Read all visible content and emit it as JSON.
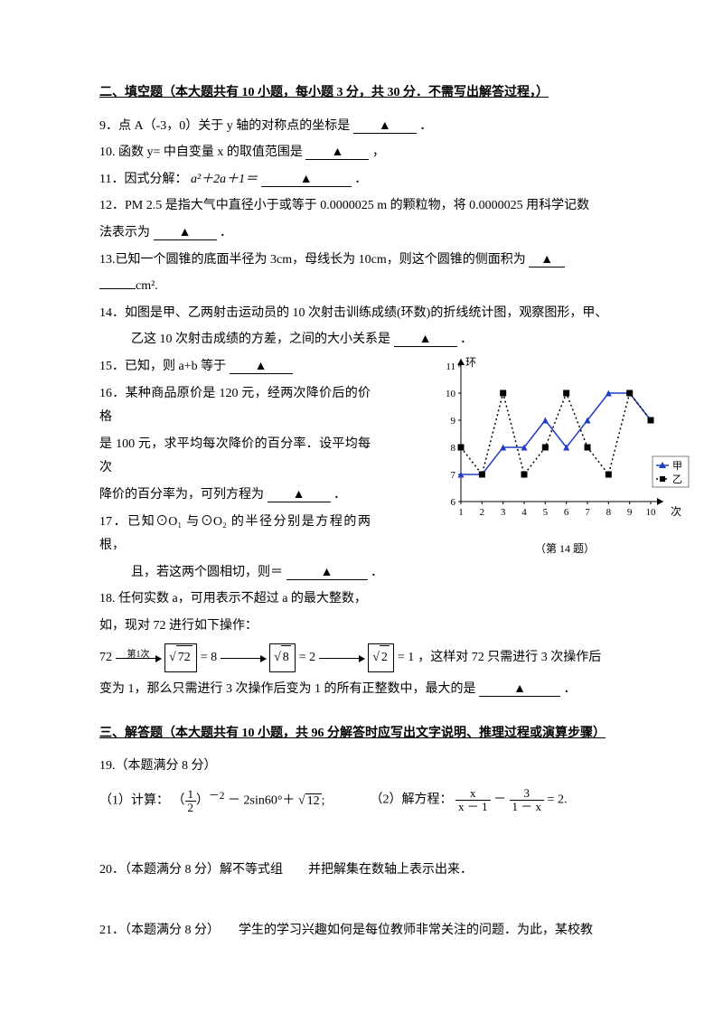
{
  "section2": {
    "heading": "二、填空题（本大题共有 10 小题，每小题 3 分，共 30 分．不需写出解答过程，）",
    "q9": "9．点 A（-3，0）关于 y 轴的对称点的坐标是",
    "q9end": "．",
    "q10": "10. 函数 y= 中自变量 x 的取值范围是",
    "q10end": "，",
    "q11a": "11．因式分解：",
    "q11expr": "a²＋2a＋1＝",
    "q11end": "．",
    "q12a": "12．PM 2.5 是指大气中直径小于或等于 0.0000025 m 的颗粒物，将 0.0000025 用科学记数",
    "q12b": "法表示为",
    "q12end": "．",
    "q13a": "13.已知一个圆锥的底面半径为 3cm，母线长为 10cm，则这个圆锥的侧面积为",
    "q13b": "cm².",
    "q14a": "14．如图是甲、乙两射击运动员的 10 次射击训练成绩(环数)的折线统计图，观察图形，甲、",
    "q14b": "乙这 10 次射击成绩的方差，之间的大小关系是",
    "q14end": "．",
    "q15": "15．已知，则 a+b 等于",
    "q16a": "16．某种商品原价是 120 元，经两次降价后的价格",
    "q16b": "是 100 元，求平均每次降价的百分率．设平均每次",
    "q16c": "降价的百分率为，可列方程为",
    "q16end": "．",
    "q17a": "17．已知⊙O₁ 与⊙O₂ 的半径分别是方程的两根，",
    "q17b": "且，若这两个圆相切，则＝",
    "q17end": "．",
    "q18a": "18. 任何实数 a，可用表示不超过 a 的最大整数，",
    "q18b": "如，现对 72 进行如下操作：",
    "q18n1": "72",
    "q18r1": "72",
    "q18v1": "= 8",
    "q18r2": "8",
    "q18v2": "= 2",
    "q18r3": "2",
    "q18v3": "= 1",
    "q18lab": "第1次",
    "q18c": "，这样对 72 只需进行 3 次操作后",
    "q18d": "变为 1，那么只需进行 3 次操作后变为 1 的所有正整数中，最大的是",
    "q18end": "．",
    "blankmark": "▲"
  },
  "section3": {
    "heading": "三、解答题（本大题共有 10 小题，共 96 分解答时应写出文字说明、推理过程或演算步骤）",
    "q19t": "19.（本题满分 8 分）",
    "q19_1a": "（1）计算：",
    "q19_1n": "1",
    "q19_1d": "2",
    "q19_1exp": "－2",
    "q19_1mid": "－ 2sin60°＋",
    "q19_1rad": "12",
    "q19_2a": "（2）解方程：",
    "q19_2f1n": "x",
    "q19_2f1d": "x － 1",
    "q19_2minus": "－",
    "q19_2f2n": "3",
    "q19_2f2d": "1 － x",
    "q19_2eq": "= 2.",
    "q20": "20．（本题满分 8 分）解不等式组　　并把解集在数轴上表示出来．",
    "q21": "21．（本题满分 8 分）　　学生的学习兴趣如何是每位教师非常关注的问题．为此，某校教"
  },
  "chart": {
    "type": "line",
    "caption": "（第 14 题）",
    "ylabel": "环",
    "xlabel": "次",
    "yticks": [
      6,
      7,
      8,
      9,
      10,
      11
    ],
    "xticks": [
      1,
      2,
      3,
      4,
      5,
      6,
      7,
      8,
      9,
      10
    ],
    "ylim": [
      6,
      11
    ],
    "xlim": [
      0.5,
      10.5
    ],
    "background_color": "#ffffff",
    "axis_color": "#000000",
    "series": [
      {
        "name": "甲",
        "color": "#203ec4",
        "marker": "triangle",
        "dash": "solid",
        "y": [
          7,
          7,
          8,
          8,
          9,
          8,
          9,
          10,
          10,
          9
        ]
      },
      {
        "name": "乙",
        "color": "#000000",
        "marker": "square",
        "dash": "dotted",
        "y": [
          8,
          7,
          10,
          7,
          8,
          10,
          8,
          7,
          10,
          9
        ]
      }
    ],
    "legend": {
      "items": [
        "甲",
        "乙"
      ],
      "position": "right"
    },
    "marker_size": 7,
    "line_width": 1.5,
    "label_fontsize": 12
  }
}
